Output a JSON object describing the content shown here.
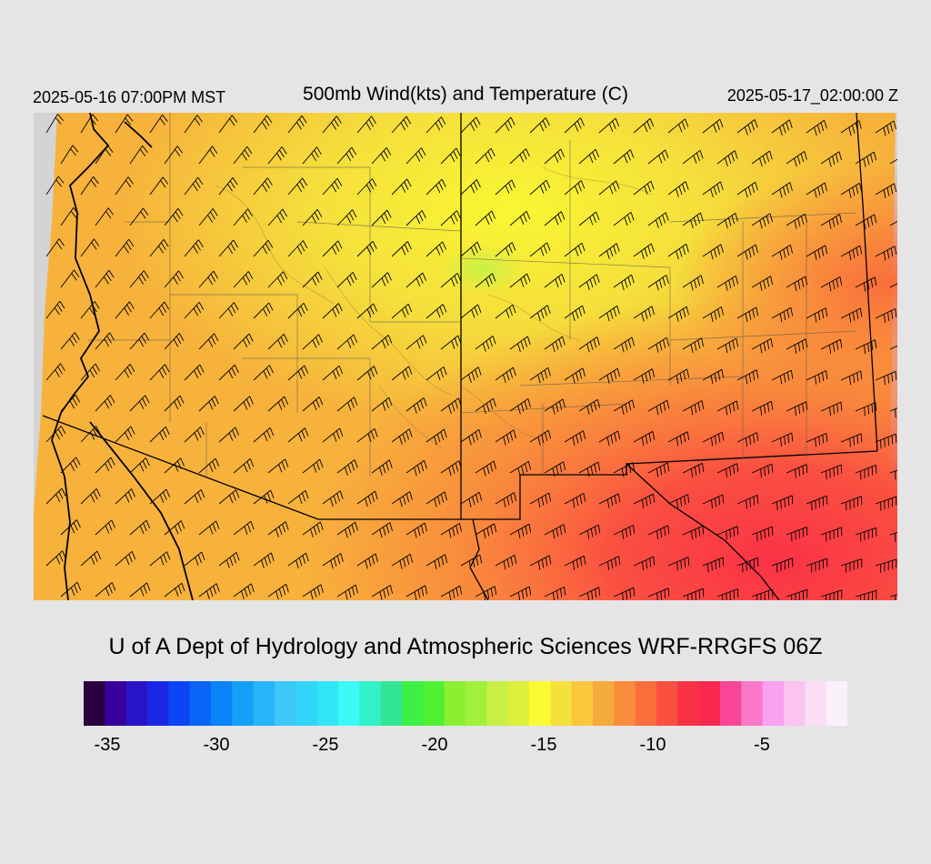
{
  "header": {
    "local_time": "2025-05-16 07:00PM MST",
    "title": "500mb Wind(kts) and Temperature (C)",
    "valid_time": "2025-05-17_02:00:00 Z"
  },
  "credit": "U of A Dept of Hydrology and Atmospheric Sciences WRF-RRGFS 06Z",
  "colorbar": {
    "colors": [
      "#2a0040",
      "#36009a",
      "#2a14c8",
      "#1a28e6",
      "#0a46f8",
      "#0a64f8",
      "#0a82f8",
      "#14a0f8",
      "#28b4f8",
      "#3cc8f8",
      "#32d4f8",
      "#32e6f8",
      "#3cfaf8",
      "#32f0c8",
      "#32e696",
      "#3cf046",
      "#50f032",
      "#8cf032",
      "#a0f03c",
      "#c8f046",
      "#dcf03c",
      "#fafa32",
      "#f5e13c",
      "#fac83c",
      "#f5aa3c",
      "#fa8c3c",
      "#fa6e3c",
      "#fa5041",
      "#fa3246",
      "#fa2850",
      "#fa4696",
      "#fa78c8",
      "#faa0f0",
      "#fac3f0",
      "#fadcf5",
      "#faf0fa"
    ],
    "ticks": [
      {
        "label": "-35",
        "value": -35
      },
      {
        "label": "-30",
        "value": -30
      },
      {
        "label": "-25",
        "value": -25
      },
      {
        "label": "-20",
        "value": -20
      },
      {
        "label": "-15",
        "value": -15
      },
      {
        "label": "-10",
        "value": -10
      },
      {
        "label": "-5",
        "value": -5
      }
    ]
  }
}
